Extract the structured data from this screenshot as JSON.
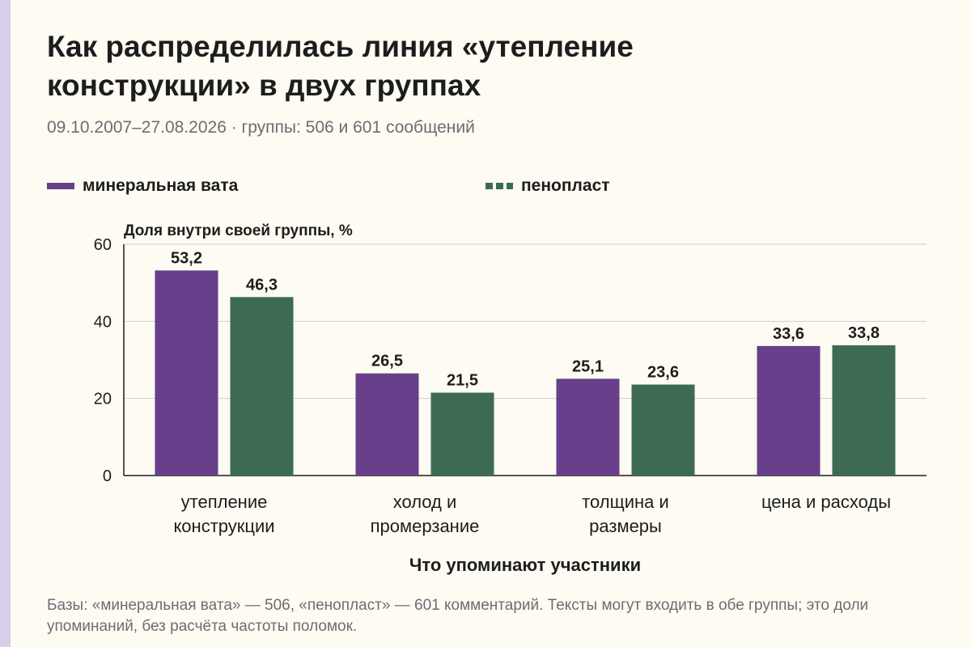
{
  "header": {
    "title": "Как распределилась линия «утепление конструкции» в двух группах",
    "subtitle": "09.10.2007–27.08.2026 · группы: 506 и 601 сообщений"
  },
  "legend": {
    "mineral_wool": "минеральная вата",
    "foam": "пенопласт"
  },
  "colors": {
    "mineral_wool": "#673f8a",
    "foam": "#3d6b52",
    "accent_strip": "#d8cdea",
    "background": "#fdfbf2"
  },
  "footnote": "Базы: «минеральная вата» — 506, «пенопласт» — 601 комментарий. Тексты могут входить в обе группы; это доли упоминаний, без расчёта частоты поломок.",
  "chart_data": {
    "type": "bar",
    "title": "Как распределилась линия «утепление конструкции» в двух группах",
    "subtitle": "09.10.2007–27.08.2026 · группы: 506 и 601 сообщений",
    "xlabel": "Что упоминают участники",
    "ylabel": "Доля внутри своей группы, %",
    "ylim": [
      0,
      60
    ],
    "yticks": [
      0,
      20,
      40,
      60
    ],
    "grid": true,
    "legend_position": "top",
    "categories": [
      [
        "утепление",
        "конструкции"
      ],
      [
        "холод и",
        "промерзание"
      ],
      [
        "толщина и",
        "размеры"
      ],
      [
        "цена и расходы"
      ]
    ],
    "series": [
      {
        "name": "минеральная вата",
        "color": "#673f8a",
        "values": [
          53.2,
          26.5,
          25.1,
          33.6
        ],
        "labels": [
          "53,2",
          "26,5",
          "25,1",
          "33,6"
        ]
      },
      {
        "name": "пенопласт",
        "color": "#3d6b52",
        "values": [
          46.3,
          21.5,
          23.6,
          33.8
        ],
        "labels": [
          "46,3",
          "21,5",
          "23,6",
          "33,8"
        ]
      }
    ]
  }
}
